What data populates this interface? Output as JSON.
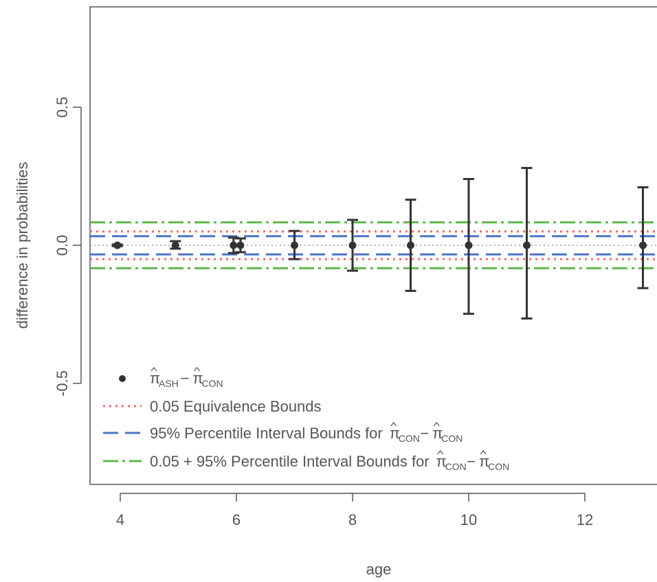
{
  "chart_data": {
    "type": "scatter",
    "xlabel": "age",
    "ylabel": "difference in probabilities",
    "xlim": [
      3.6,
      13.2
    ],
    "ylim": [
      -0.87,
      0.87
    ],
    "x_ticks": [
      4,
      6,
      8,
      10,
      12
    ],
    "x_tick_labels": [
      "4",
      "6",
      "8",
      "10",
      "12"
    ],
    "y_ticks": [
      -0.5,
      0.0,
      0.5
    ],
    "y_tick_labels": [
      "-0.5",
      "0.0",
      "0.5"
    ],
    "grid": false,
    "legend_position": "bottom-left",
    "zero_line": 0,
    "points": [
      {
        "x": 3.95,
        "y": 0.0,
        "lo": -0.003,
        "hi": 0.003
      },
      {
        "x": 4.95,
        "y": 0.0,
        "lo": -0.012,
        "hi": 0.015
      },
      {
        "x": 5.95,
        "y": 0.0,
        "lo": -0.028,
        "hi": 0.028
      },
      {
        "x": 6.07,
        "y": 0.0,
        "lo": -0.025,
        "hi": 0.025
      },
      {
        "x": 7.0,
        "y": 0.0,
        "lo": -0.05,
        "hi": 0.052
      },
      {
        "x": 8.0,
        "y": 0.0,
        "lo": -0.092,
        "hi": 0.092
      },
      {
        "x": 9.0,
        "y": 0.0,
        "lo": -0.165,
        "hi": 0.165
      },
      {
        "x": 10.0,
        "y": 0.0,
        "lo": -0.248,
        "hi": 0.24
      },
      {
        "x": 11.0,
        "y": 0.0,
        "lo": -0.265,
        "hi": 0.28
      },
      {
        "x": 13.0,
        "y": 0.0,
        "lo": -0.155,
        "hi": 0.21
      }
    ],
    "hlines": [
      {
        "series": "equivalence",
        "y": 0.05,
        "color": "#ee6b6b",
        "style": "dotted"
      },
      {
        "series": "equivalence",
        "y": -0.05,
        "color": "#ee6b6b",
        "style": "dotted"
      },
      {
        "series": "percentile",
        "y": 0.033,
        "color": "#4a74c9",
        "style": "dashed"
      },
      {
        "series": "percentile",
        "y": -0.033,
        "color": "#4a74c9",
        "style": "dashed"
      },
      {
        "series": "combined",
        "y": 0.083,
        "color": "#5fb84a",
        "style": "dotdash"
      },
      {
        "series": "combined",
        "y": -0.083,
        "color": "#5fb84a",
        "style": "dotdash"
      }
    ],
    "legend": [
      {
        "key": "points",
        "type": "point",
        "color": "#333333",
        "text_parts": {
          "a": "π",
          "a_sub": "ASH",
          "b": "π",
          "b_sub": "CON"
        }
      },
      {
        "key": "equivalence",
        "type": "line",
        "color": "#ee6b6b",
        "style": "dotted",
        "text": "0.05 Equivalence Bounds"
      },
      {
        "key": "percentile",
        "type": "line",
        "color": "#4a74c9",
        "style": "dashed",
        "text": "95% Percentile Interval Bounds for",
        "text_parts": {
          "a": "π",
          "a_sub": "CON",
          "b": "π",
          "b_sub": "CON"
        }
      },
      {
        "key": "combined",
        "type": "line",
        "color": "#5fb84a",
        "style": "dotdash",
        "text": "0.05 + 95% Percentile Interval Bounds for",
        "text_parts": {
          "a": "π",
          "a_sub": "CON",
          "b": "π",
          "b_sub": "CON"
        }
      }
    ],
    "colors": {
      "points": "#333333",
      "axis": "#555555",
      "zero": "#888888"
    }
  }
}
